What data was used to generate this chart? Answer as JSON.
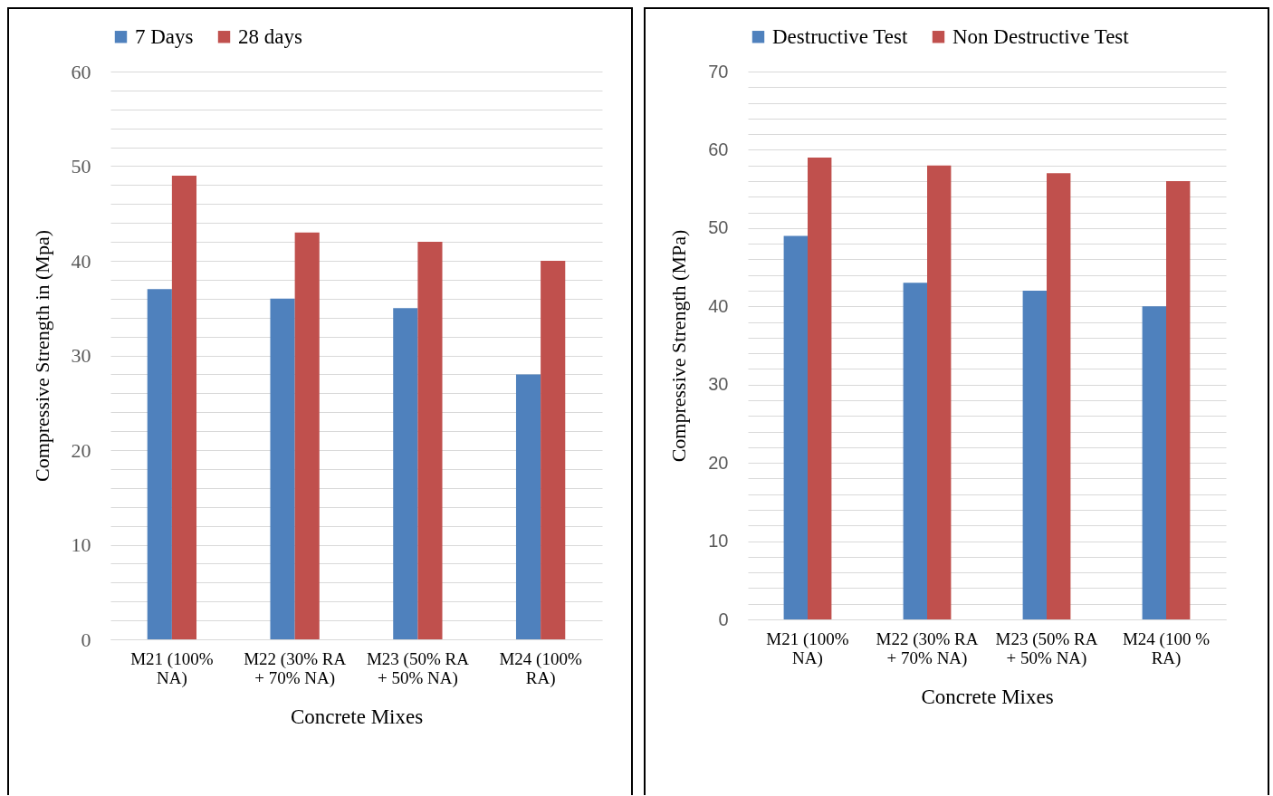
{
  "chart_data": [
    {
      "type": "bar",
      "xlabel": "Concrete Mixes",
      "ylabel": "Compressive Strength in (Mpa)",
      "categories": [
        "M21 (100% NA)",
        "M22 (30% RA + 70% NA)",
        "M23 (50% RA + 50% NA)",
        "M24 (100% RA)"
      ],
      "series": [
        {
          "name": "7 Days",
          "color": "#4f81bd",
          "values": [
            37,
            36,
            35,
            28
          ]
        },
        {
          "name": "28 days",
          "color": "#c0504d",
          "values": [
            49,
            43,
            42,
            40
          ]
        }
      ],
      "ylim": [
        0,
        60
      ],
      "yticks": [
        0,
        {
          "value": 2,
          "label": null
        },
        {
          "value": 4,
          "label": null
        },
        {
          "value": 6,
          "label": null
        },
        {
          "value": 8,
          "label": null
        },
        10,
        {
          "value": 12,
          "label": null
        },
        {
          "value": 14,
          "label": null
        },
        {
          "value": 16,
          "label": null
        },
        {
          "value": 18,
          "label": null
        },
        20,
        {
          "value": 22,
          "label": null
        },
        {
          "value": 24,
          "label": null
        },
        {
          "value": 26,
          "label": null
        },
        {
          "value": 28,
          "label": null
        },
        30,
        {
          "value": 32,
          "label": null
        },
        {
          "value": 34,
          "label": null
        },
        {
          "value": 36,
          "label": null
        },
        {
          "value": 38,
          "label": null
        },
        40,
        {
          "value": 42,
          "label": null
        },
        {
          "value": 44,
          "label": null
        },
        {
          "value": 46,
          "label": null
        },
        {
          "value": 48,
          "label": null
        },
        50,
        {
          "value": 52,
          "label": null
        },
        {
          "value": 54,
          "label": null
        },
        {
          "value": 56,
          "label": null
        },
        {
          "value": 58,
          "label": null
        },
        60
      ],
      "grid": "y",
      "legend": "top"
    },
    {
      "type": "bar",
      "xlabel": "Concrete Mixes",
      "ylabel": "Compressive Strength (MPa)",
      "categories": [
        "M21 (100% NA)",
        "M22 (30% RA + 70% NA)",
        "M23 (50% RA + 50% NA)",
        "M24 (100 % RA)"
      ],
      "series": [
        {
          "name": "Destructive Test",
          "color": "#4f81bd",
          "values": [
            49,
            43,
            42,
            40
          ]
        },
        {
          "name": "Non Destructive Test",
          "color": "#c0504d",
          "values": [
            59,
            58,
            57,
            56
          ]
        }
      ],
      "ylim": [
        0,
        70
      ],
      "yticks": [
        0,
        {
          "value": 2,
          "label": null
        },
        {
          "value": 4,
          "label": null
        },
        {
          "value": 6,
          "label": null
        },
        {
          "value": 8,
          "label": null
        },
        10,
        {
          "value": 12,
          "label": null
        },
        {
          "value": 14,
          "label": null
        },
        {
          "value": 16,
          "label": null
        },
        {
          "value": 18,
          "label": null
        },
        20,
        {
          "value": 22,
          "label": null
        },
        {
          "value": 24,
          "label": null
        },
        {
          "value": 26,
          "label": null
        },
        {
          "value": 28,
          "label": null
        },
        30,
        {
          "value": 32,
          "label": null
        },
        {
          "value": 34,
          "label": null
        },
        {
          "value": 36,
          "label": null
        },
        {
          "value": 38,
          "label": null
        },
        40,
        {
          "value": 42,
          "label": null
        },
        {
          "value": 44,
          "label": null
        },
        {
          "value": 46,
          "label": null
        },
        {
          "value": 48,
          "label": null
        },
        50,
        {
          "value": 52,
          "label": null
        },
        {
          "value": 54,
          "label": null
        },
        {
          "value": 56,
          "label": null
        },
        {
          "value": 58,
          "label": null
        },
        60,
        {
          "value": 62,
          "label": null
        },
        {
          "value": 64,
          "label": null
        },
        {
          "value": 66,
          "label": null
        },
        {
          "value": 68,
          "label": null
        },
        70
      ],
      "grid": "y",
      "legend": "top"
    }
  ]
}
